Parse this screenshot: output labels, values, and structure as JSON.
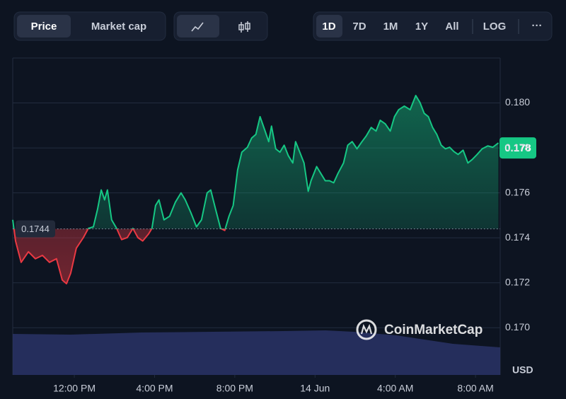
{
  "controls": {
    "view": [
      "Price",
      "Market cap"
    ],
    "ranges": [
      "1D",
      "7D",
      "1M",
      "1Y",
      "All"
    ],
    "scale": "LOG",
    "more": "···"
  },
  "watermark": "CoinMarketCap",
  "chart_data": {
    "type": "line",
    "x": [
      8.93,
      9.07,
      9.35,
      9.71,
      10.06,
      10.41,
      10.76,
      11.11,
      11.4,
      11.61,
      11.82,
      12.1,
      12.45,
      12.7,
      12.95,
      13.16,
      13.34,
      13.51,
      13.65,
      13.86,
      14.11,
      14.36,
      14.64,
      14.92,
      15.17,
      15.41,
      15.7,
      15.87,
      16.05,
      16.22,
      16.47,
      16.75,
      17.04,
      17.32,
      17.53,
      17.81,
      18.09,
      18.34,
      18.62,
      18.8,
      19.04,
      19.29,
      19.5,
      19.71,
      19.92,
      20.14,
      20.35,
      20.63,
      20.84,
      21.05,
      21.26,
      21.51,
      21.69,
      21.83,
      22.04,
      22.25,
      22.46,
      22.67,
      22.89,
      23.03,
      23.24,
      23.45,
      23.66,
      23.8,
      24.08,
      24.29,
      24.51,
      24.72,
      24.93,
      25.14,
      25.42,
      25.63,
      25.85,
      26.09,
      26.34,
      26.55,
      26.8,
      27.04,
      27.25,
      27.5,
      27.75,
      27.96,
      28.17,
      28.45,
      28.74,
      29.02,
      29.23,
      29.44,
      29.65,
      29.86,
      30.07,
      30.29,
      30.5,
      30.71,
      30.92,
      31.13,
      31.38,
      31.62,
      31.84,
      32.08,
      32.33,
      32.61,
      32.86,
      33.14
    ],
    "series": [
      {
        "values": [
          0.1748,
          0.17386,
          0.17291,
          0.17338,
          0.17307,
          0.17322,
          0.17291,
          0.17307,
          0.17212,
          0.17196,
          0.17243,
          0.17354,
          0.17401,
          0.17442,
          0.17449,
          0.17528,
          0.17613,
          0.17569,
          0.17613,
          0.1748,
          0.17442,
          0.17392,
          0.17401,
          0.17442,
          0.17401,
          0.17386,
          0.17417,
          0.17442,
          0.17544,
          0.17569,
          0.1748,
          0.17496,
          0.17559,
          0.176,
          0.17569,
          0.17512,
          0.17449,
          0.1748,
          0.176,
          0.17613,
          0.17528,
          0.17442,
          0.17433,
          0.17496,
          0.17544,
          0.17702,
          0.17781,
          0.17803,
          0.17844,
          0.1786,
          0.17939,
          0.17875,
          0.17828,
          0.17897,
          0.17796,
          0.17781,
          0.17812,
          0.17765,
          0.17733,
          0.17828,
          0.17781,
          0.17733,
          0.17607,
          0.17654,
          0.17717,
          0.17686,
          0.17654,
          0.17654,
          0.17645,
          0.17686,
          0.17733,
          0.17812,
          0.17828,
          0.17796,
          0.17828,
          0.17853,
          0.17891,
          0.17875,
          0.17923,
          0.17907,
          0.17875,
          0.17939,
          0.1797,
          0.17986,
          0.1797,
          0.18033,
          0.18002,
          0.17954,
          0.17939,
          0.17891,
          0.1786,
          0.17812,
          0.17796,
          0.17803,
          0.17784,
          0.17771,
          0.1779,
          0.17733,
          0.17749,
          0.17771,
          0.17796,
          0.17809,
          0.17803,
          0.17822
        ]
      }
    ],
    "up_color": "#16c784",
    "down_color": "#ea3943",
    "baseline": 0.1744,
    "current_price": 0.178,
    "y_unit": "USD",
    "xlim": [
      8.93,
      33.23
    ],
    "xticks": [
      {
        "value": 12,
        "label": "12:00 PM"
      },
      {
        "value": 16,
        "label": "4:00 PM"
      },
      {
        "value": 20,
        "label": "8:00 PM"
      },
      {
        "value": 24,
        "label": "14 Jun"
      },
      {
        "value": 28,
        "label": "4:00 AM"
      },
      {
        "value": 32,
        "label": "8:00 AM"
      }
    ],
    "ylim": [
      0.1679,
      0.182
    ],
    "yticks": [
      {
        "value": 0.17,
        "label": "0.170"
      },
      0.172,
      0.174,
      0.176,
      0.178,
      {
        "value": 0.18,
        "label": "0.180"
      }
    ],
    "grid": true
  }
}
